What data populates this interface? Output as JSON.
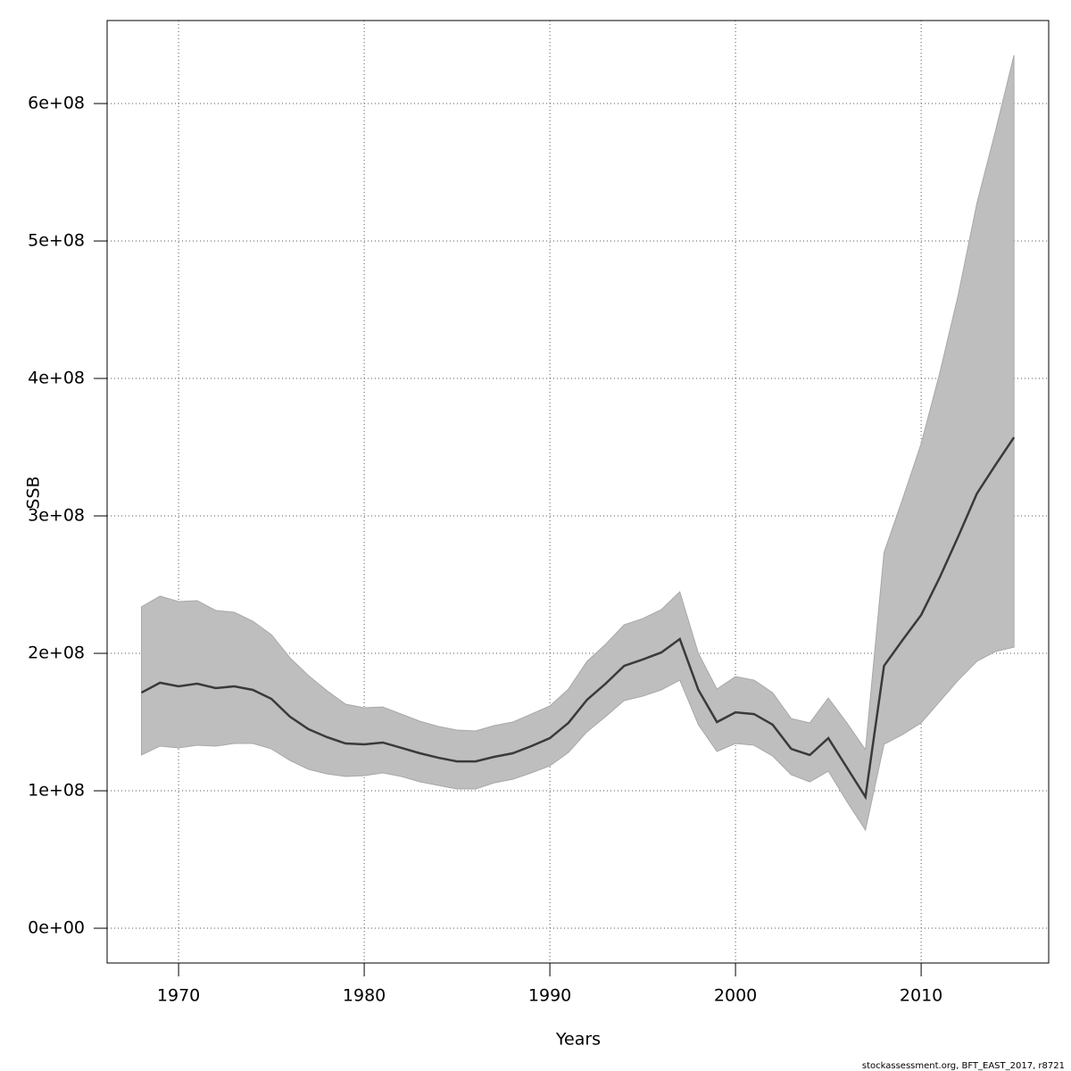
{
  "chart_data": {
    "type": "line",
    "x_label": "Years",
    "y_label": "SSB",
    "footer": "stockassessment.org, BFT_EAST_2017, r8721",
    "x": [
      1968,
      1969,
      1970,
      1971,
      1972,
      1973,
      1974,
      1975,
      1976,
      1977,
      1978,
      1979,
      1980,
      1981,
      1982,
      1983,
      1984,
      1985,
      1986,
      1987,
      1988,
      1989,
      1990,
      1991,
      1992,
      1993,
      1994,
      1995,
      1996,
      1997,
      1998,
      1999,
      2000,
      2001,
      2002,
      2003,
      2004,
      2005,
      2006,
      2007,
      2008,
      2009,
      2010,
      2011,
      2012,
      2013,
      2014,
      2015
    ],
    "values": [
      171400000.0,
      178600000.0,
      176000000.0,
      177900000.0,
      174700000.0,
      176000000.0,
      173400000.0,
      166900000.0,
      153900000.0,
      144800000.0,
      139000000.0,
      134400000.0,
      133800000.0,
      135100000.0,
      131200000.0,
      127300000.0,
      124000000.0,
      121400000.0,
      121400000.0,
      124700000.0,
      127300000.0,
      132500000.0,
      138300000.0,
      149400000.0,
      166200000.0,
      177900000.0,
      190900000.0,
      195500000.0,
      200600000.0,
      210400000.0,
      173400000.0,
      150000000.0,
      157100000.0,
      155800000.0,
      148100000.0,
      130500000.0,
      126000000.0,
      138300000.0,
      116900000.0,
      95500000.0,
      190900000.0,
      209700000.0,
      227900000.0,
      255200000.0,
      285100000.0,
      316200000.0,
      337000000.0,
      357100000.0
    ],
    "upper": [
      233800000.0,
      241600000.0,
      237700000.0,
      238300000.0,
      231200000.0,
      229900000.0,
      223400000.0,
      213600000.0,
      196800000.0,
      183800000.0,
      172700000.0,
      163000000.0,
      160400000.0,
      161000000.0,
      155800000.0,
      150600000.0,
      146800000.0,
      144200000.0,
      143500000.0,
      147400000.0,
      150000000.0,
      155800000.0,
      161700000.0,
      174000000.0,
      194200000.0,
      206500000.0,
      220800000.0,
      225300000.0,
      231800000.0,
      244800000.0,
      200000000.0,
      174000000.0,
      183100000.0,
      180500000.0,
      171400000.0,
      152600000.0,
      149400000.0,
      167500000.0,
      149400000.0,
      129900000.0,
      273400000.0,
      312300000.0,
      352600000.0,
      403900000.0,
      461000000.0,
      527300000.0,
      579900000.0,
      635100000.0
    ],
    "lower": [
      126000000.0,
      132500000.0,
      131200000.0,
      133100000.0,
      132500000.0,
      134400000.0,
      134400000.0,
      130500000.0,
      122100000.0,
      115600000.0,
      112300000.0,
      110400000.0,
      111000000.0,
      113000000.0,
      110400000.0,
      106500000.0,
      103900000.0,
      101300000.0,
      101300000.0,
      105800000.0,
      108400000.0,
      113000000.0,
      118200000.0,
      127900000.0,
      142900000.0,
      153900000.0,
      165600000.0,
      168800000.0,
      173400000.0,
      180500000.0,
      148100000.0,
      128600000.0,
      134400000.0,
      133100000.0,
      125300000.0,
      111700000.0,
      106500000.0,
      114300000.0,
      92200000.0,
      71400000.0,
      133800000.0,
      140900000.0,
      149400000.0,
      164900000.0,
      180500000.0,
      194200000.0,
      201300000.0,
      204500000.0
    ],
    "color": "#3a3a3a",
    "band_color": "#bebebe",
    "xlim": [
      1966.15,
      2016.87
    ],
    "xticks": [
      1970,
      1980,
      1990,
      2000,
      2010
    ],
    "ylim": [
      -25300000.0,
      660400000.0
    ],
    "yticks": [
      {
        "value": 0,
        "label": "0e+00"
      },
      {
        "value": 100000000,
        "label": "1e+08"
      },
      {
        "value": 200000000,
        "label": "2e+08"
      },
      {
        "value": 300000000,
        "label": "3e+08"
      },
      {
        "value": 400000000,
        "label": "4e+08"
      },
      {
        "value": 500000000,
        "label": "5e+08"
      },
      {
        "value": 600000000,
        "label": "6e+08"
      }
    ],
    "grid": true
  }
}
